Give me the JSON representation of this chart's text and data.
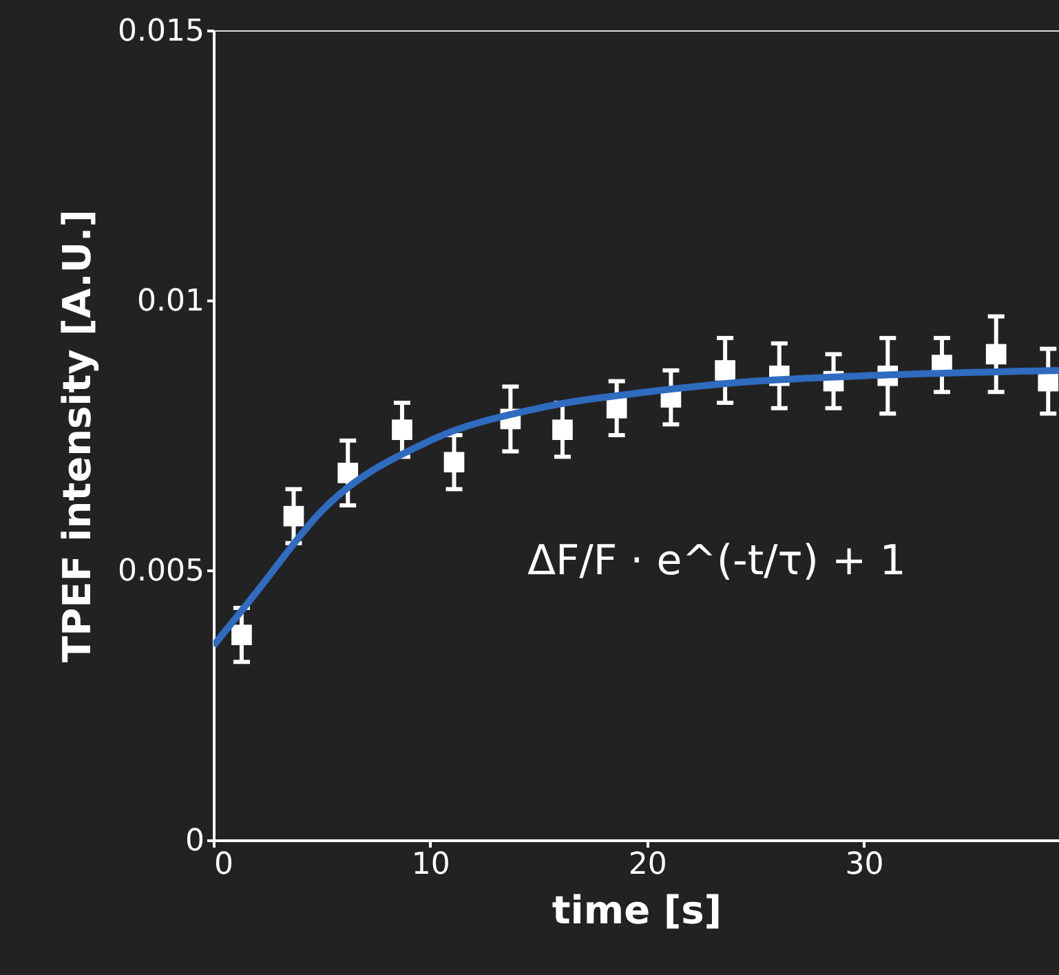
{
  "chart_data": {
    "type": "scatter",
    "xlabel": "time [s]",
    "ylabel": "TPEF intensity [A.U.]",
    "annotations": [
      "ΔF/F · e^(-t/τ) + 1"
    ],
    "series": [
      {
        "color": "#ffffff",
        "marker": "square",
        "x": [
          1.3,
          3.7,
          6.2,
          8.7,
          11.1,
          13.7,
          16.1,
          18.6,
          21.1,
          23.6,
          26.1,
          28.6,
          31.1,
          33.6,
          36.1,
          38.5
        ],
        "values": [
          0.0038,
          0.006,
          0.0068,
          0.0076,
          0.007,
          0.0078,
          0.0076,
          0.008,
          0.0082,
          0.0087,
          0.0086,
          0.0085,
          0.0086,
          0.0088,
          0.009,
          0.0085
        ],
        "errors": [
          0.0005,
          0.0005,
          0.0006,
          0.0005,
          0.0005,
          0.0006,
          0.0005,
          0.0005,
          0.0005,
          0.0006,
          0.0006,
          0.0005,
          0.0007,
          0.0005,
          0.0007,
          0.0006
        ]
      },
      {
        "type": "line",
        "color": "#2f6bbf",
        "x": [
          0,
          2,
          5,
          10,
          15,
          20,
          25,
          30,
          39
        ],
        "values": [
          0.0036,
          0.0046,
          0.0061,
          0.0074,
          0.008,
          0.0083,
          0.0085,
          0.0086,
          0.0087
        ]
      }
    ],
    "xlim": [
      0,
      39
    ],
    "xticks": [
      0,
      10,
      20,
      30
    ],
    "ylim": [
      0,
      0.015
    ],
    "yticks": [
      0,
      0.005,
      0.01,
      0.015
    ],
    "grid": false
  }
}
